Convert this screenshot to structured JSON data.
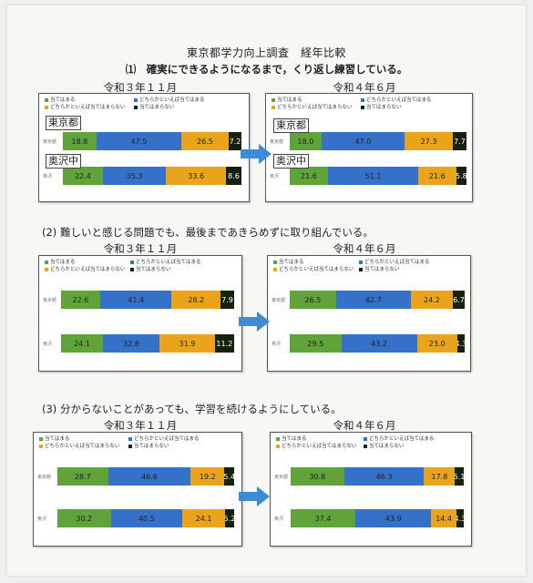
{
  "header": {
    "title": "東京都学力向上調査　経年比較",
    "subtitle": "⑴　確実にできるようになるまで，くり返し練習している。"
  },
  "legend": {
    "items": [
      {
        "label": "当てはまる",
        "color": "#5fa33a"
      },
      {
        "label": "どちらかといえば当てはまる",
        "color": "#3570c9"
      },
      {
        "label": "どちらかといえば当てはまらない",
        "color": "#e9a41c"
      },
      {
        "label": "当てはまらない",
        "color": "#16220f"
      }
    ]
  },
  "questions": [
    {
      "title": "",
      "before_label": "令和３年１１月",
      "after_label": "令和４年６月"
    },
    {
      "title": "(2) 難しいと感じる問題でも、最後まであきらめずに取り組んでいる。",
      "before_label": "令和３年１１月",
      "after_label": "令和４年６月"
    },
    {
      "title": "(3) 分からないことがあっても、学習を続けるようにしている。",
      "before_label": "令和３年１１月",
      "after_label": "令和４年６月"
    }
  ],
  "tags": {
    "tokyo": "東京都",
    "okusawa": "奥沢中"
  },
  "row_labels": {
    "tokyo": "東京都",
    "school": "奥沢"
  },
  "chart_data": [
    {
      "type": "bar",
      "stacked": true,
      "orientation": "horizontal",
      "title": "令和３年１１月",
      "series_order": [
        "当てはまる",
        "どちらかといえば当てはまる",
        "どちらかといえば当てはまらない",
        "当てはまらない"
      ],
      "rows": [
        {
          "name": "東京都",
          "values": [
            18.8,
            47.5,
            26.5,
            7.2
          ]
        },
        {
          "name": "奥沢中",
          "values": [
            22.4,
            35.3,
            33.6,
            8.6
          ]
        }
      ]
    },
    {
      "type": "bar",
      "stacked": true,
      "orientation": "horizontal",
      "title": "令和４年６月",
      "series_order": [
        "当てはまる",
        "どちらかといえば当てはまる",
        "どちらかといえば当てはまらない",
        "当てはまらない"
      ],
      "rows": [
        {
          "name": "東京都",
          "values": [
            18.0,
            47.0,
            27.3,
            7.7
          ]
        },
        {
          "name": "奥沢中",
          "values": [
            21.6,
            51.1,
            21.6,
            5.8
          ]
        }
      ]
    },
    {
      "type": "bar",
      "stacked": true,
      "orientation": "horizontal",
      "title": "令和３年１１月",
      "series_order": [
        "当てはまる",
        "どちらかといえば当てはまる",
        "どちらかといえば当てはまらない",
        "当てはまらない"
      ],
      "rows": [
        {
          "name": "東京都",
          "values": [
            22.6,
            41.4,
            28.2,
            7.9
          ]
        },
        {
          "name": "奥沢中",
          "values": [
            24.1,
            32.8,
            31.9,
            11.2
          ]
        }
      ]
    },
    {
      "type": "bar",
      "stacked": true,
      "orientation": "horizontal",
      "title": "令和４年６月",
      "series_order": [
        "当てはまる",
        "どちらかといえば当てはまる",
        "どちらかといえば当てはまらない",
        "当てはまらない"
      ],
      "rows": [
        {
          "name": "東京都",
          "values": [
            26.5,
            42.7,
            24.2,
            6.7
          ]
        },
        {
          "name": "奥沢中",
          "values": [
            29.5,
            43.2,
            23.0,
            4.3
          ]
        }
      ]
    },
    {
      "type": "bar",
      "stacked": true,
      "orientation": "horizontal",
      "title": "令和３年１１月",
      "series_order": [
        "当てはまる",
        "どちらかといえば当てはまる",
        "どちらかといえば当てはまらない",
        "当てはまらない"
      ],
      "rows": [
        {
          "name": "東京都",
          "values": [
            28.7,
            46.6,
            19.2,
            5.4
          ]
        },
        {
          "name": "奥沢中",
          "values": [
            30.2,
            40.5,
            24.1,
            5.2
          ]
        }
      ]
    },
    {
      "type": "bar",
      "stacked": true,
      "orientation": "horizontal",
      "title": "令和４年６月",
      "series_order": [
        "当てはまる",
        "どちらかといえば当てはまる",
        "どちらかといえば当てはまらない",
        "当てはまらない"
      ],
      "rows": [
        {
          "name": "東京都",
          "values": [
            30.8,
            46.3,
            17.8,
            5.1
          ]
        },
        {
          "name": "奥沢中",
          "values": [
            37.4,
            43.9,
            14.4,
            4.3
          ]
        }
      ]
    }
  ]
}
